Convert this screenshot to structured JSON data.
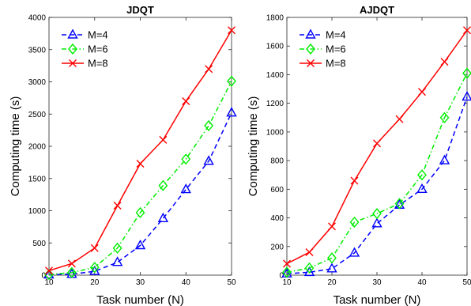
{
  "chart_data": [
    {
      "type": "line",
      "title": "JDQT",
      "xlabel": "Task number (N)",
      "ylabel": "Computing time (s)",
      "x": [
        10,
        15,
        20,
        25,
        30,
        35,
        40,
        45,
        50
      ],
      "xlim": [
        10,
        50
      ],
      "ylim": [
        0,
        4000
      ],
      "xticks": [
        "10",
        "20",
        "30",
        "40",
        "50"
      ],
      "yticks": [
        "0",
        "500",
        "1000",
        "1500",
        "2000",
        "2500",
        "3000",
        "3500",
        "4000"
      ],
      "grid": false,
      "legend_position": "top-left",
      "series": [
        {
          "name": "M=4",
          "color": "#0000ff",
          "line_style": "dashed",
          "marker": "triangle",
          "values": [
            5,
            15,
            60,
            200,
            460,
            880,
            1330,
            1770,
            2520
          ]
        },
        {
          "name": "M=6",
          "color": "#00ee00",
          "line_style": "dash-dot",
          "marker": "diamond",
          "values": [
            10,
            40,
            120,
            420,
            970,
            1390,
            1800,
            2320,
            3010
          ]
        },
        {
          "name": "M=8",
          "color": "#ff0000",
          "line_style": "solid",
          "marker": "x",
          "values": [
            70,
            180,
            420,
            1080,
            1730,
            2100,
            2700,
            3200,
            3800
          ]
        }
      ]
    },
    {
      "type": "line",
      "title": "AJDQT",
      "xlabel": "Task number (N)",
      "ylabel": "Computing time (s)",
      "x": [
        10,
        15,
        20,
        25,
        30,
        35,
        40,
        45,
        50
      ],
      "xlim": [
        10,
        50
      ],
      "ylim": [
        0,
        1800
      ],
      "xticks": [
        "10",
        "20",
        "30",
        "40",
        "50"
      ],
      "yticks": [
        "0",
        "200",
        "400",
        "600",
        "800",
        "1000",
        "1200",
        "1400",
        "1600",
        "1800"
      ],
      "grid": false,
      "legend_position": "top-left",
      "series": [
        {
          "name": "M=4",
          "color": "#0000ff",
          "line_style": "dashed",
          "marker": "triangle",
          "values": [
            10,
            20,
            45,
            155,
            360,
            490,
            600,
            800,
            1245
          ]
        },
        {
          "name": "M=6",
          "color": "#00ee00",
          "line_style": "dash-dot",
          "marker": "diamond",
          "values": [
            20,
            50,
            120,
            370,
            430,
            500,
            700,
            1100,
            1410
          ]
        },
        {
          "name": "M=8",
          "color": "#ff0000",
          "line_style": "solid",
          "marker": "x",
          "values": [
            80,
            160,
            340,
            660,
            920,
            1090,
            1280,
            1490,
            1710
          ]
        }
      ]
    }
  ]
}
